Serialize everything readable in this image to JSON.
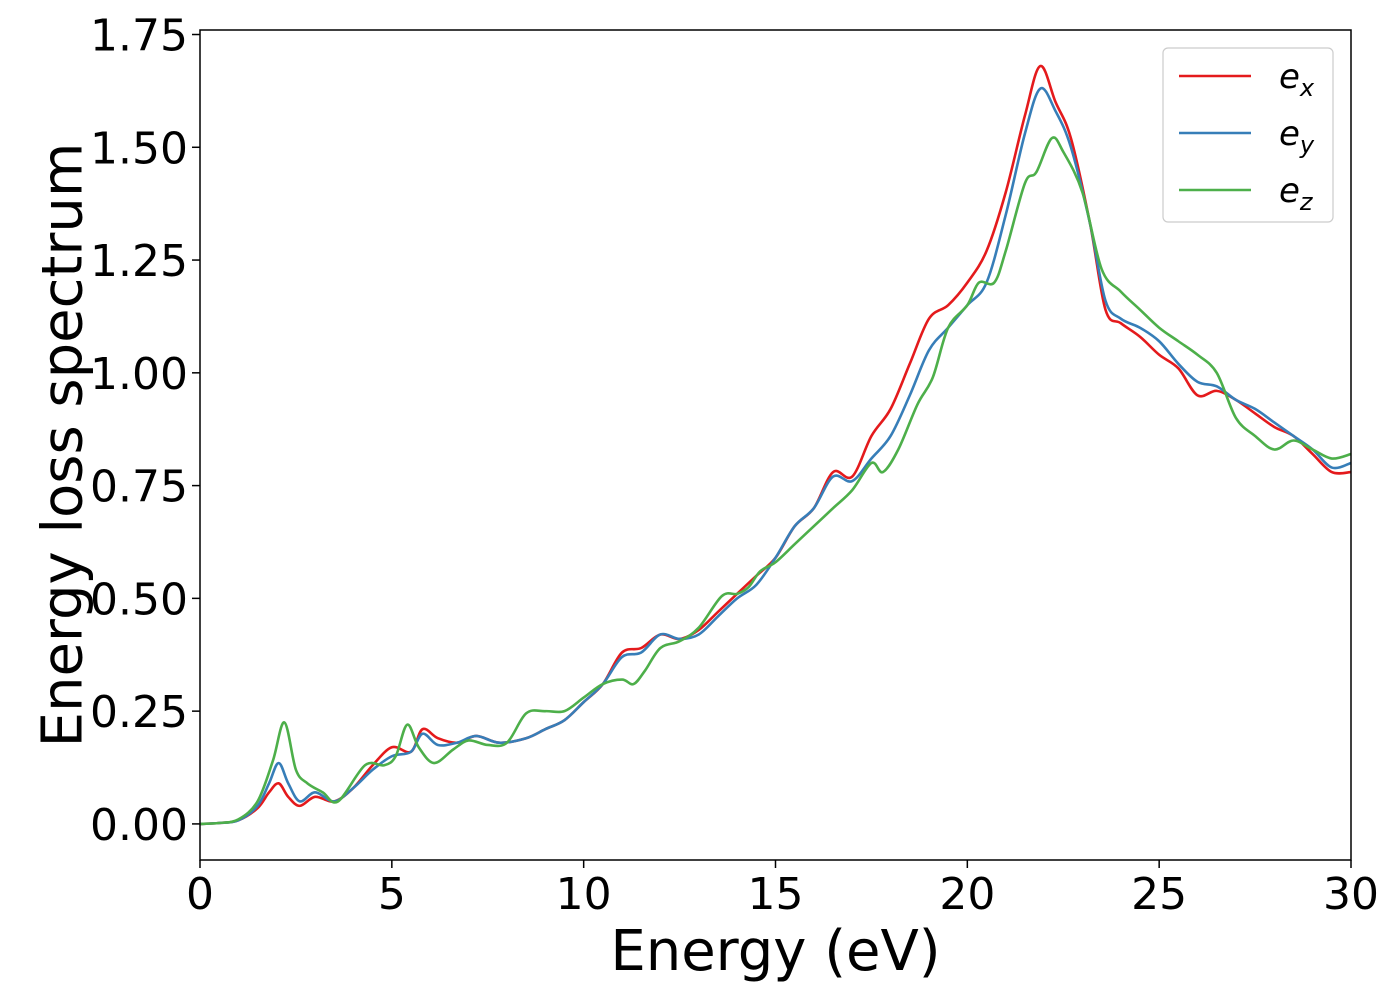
{
  "chart_data": {
    "type": "line",
    "title": "",
    "xlabel": "Energy (eV)",
    "ylabel": "Energy loss spectrum",
    "xlim": [
      0,
      30
    ],
    "ylim": [
      -0.08,
      1.76
    ],
    "xticks": [
      0,
      5,
      10,
      15,
      20,
      25,
      30
    ],
    "xtick_labels": [
      "0",
      "5",
      "10",
      "15",
      "20",
      "25",
      "30"
    ],
    "yticks": [
      0.0,
      0.25,
      0.5,
      0.75,
      1.0,
      1.25,
      1.5,
      1.75
    ],
    "ytick_labels": [
      "0.00",
      "0.25",
      "0.50",
      "0.75",
      "1.00",
      "1.25",
      "1.50",
      "1.75"
    ],
    "grid": false,
    "legend_position": "top-right",
    "series": [
      {
        "name": "e_x",
        "label_base": "e",
        "label_sub": "x",
        "color": "#e41a1c",
        "points": [
          [
            0,
            0
          ],
          [
            0.5,
            0.002
          ],
          [
            1.0,
            0.008
          ],
          [
            1.5,
            0.035
          ],
          [
            1.8,
            0.07
          ],
          [
            2.05,
            0.09
          ],
          [
            2.3,
            0.06
          ],
          [
            2.6,
            0.04
          ],
          [
            3.0,
            0.06
          ],
          [
            3.5,
            0.05
          ],
          [
            4.0,
            0.08
          ],
          [
            4.5,
            0.13
          ],
          [
            5.0,
            0.17
          ],
          [
            5.5,
            0.16
          ],
          [
            5.8,
            0.21
          ],
          [
            6.2,
            0.19
          ],
          [
            6.7,
            0.18
          ],
          [
            7.2,
            0.195
          ],
          [
            7.8,
            0.18
          ],
          [
            8.5,
            0.19
          ],
          [
            9.0,
            0.21
          ],
          [
            9.5,
            0.23
          ],
          [
            10.0,
            0.27
          ],
          [
            10.5,
            0.31
          ],
          [
            11.0,
            0.38
          ],
          [
            11.5,
            0.39
          ],
          [
            12.0,
            0.42
          ],
          [
            12.5,
            0.41
          ],
          [
            13.0,
            0.43
          ],
          [
            13.5,
            0.47
          ],
          [
            14.0,
            0.51
          ],
          [
            14.5,
            0.55
          ],
          [
            15.0,
            0.59
          ],
          [
            15.5,
            0.66
          ],
          [
            16.0,
            0.7
          ],
          [
            16.5,
            0.78
          ],
          [
            17.0,
            0.77
          ],
          [
            17.5,
            0.86
          ],
          [
            18.0,
            0.92
          ],
          [
            18.5,
            1.02
          ],
          [
            19.0,
            1.12
          ],
          [
            19.5,
            1.15
          ],
          [
            20.0,
            1.2
          ],
          [
            20.5,
            1.27
          ],
          [
            21.0,
            1.4
          ],
          [
            21.5,
            1.57
          ],
          [
            21.9,
            1.68
          ],
          [
            22.3,
            1.6
          ],
          [
            22.7,
            1.52
          ],
          [
            23.2,
            1.33
          ],
          [
            23.6,
            1.14
          ],
          [
            24.0,
            1.11
          ],
          [
            24.5,
            1.08
          ],
          [
            25.0,
            1.04
          ],
          [
            25.5,
            1.01
          ],
          [
            26.0,
            0.95
          ],
          [
            26.5,
            0.96
          ],
          [
            27.0,
            0.94
          ],
          [
            27.5,
            0.91
          ],
          [
            28.0,
            0.88
          ],
          [
            28.5,
            0.86
          ],
          [
            29.0,
            0.82
          ],
          [
            29.5,
            0.78
          ],
          [
            30.0,
            0.78
          ]
        ]
      },
      {
        "name": "e_y",
        "label_base": "e",
        "label_sub": "y",
        "color": "#377eb8",
        "points": [
          [
            0,
            0
          ],
          [
            0.5,
            0.002
          ],
          [
            1.0,
            0.008
          ],
          [
            1.5,
            0.04
          ],
          [
            1.8,
            0.09
          ],
          [
            2.05,
            0.135
          ],
          [
            2.3,
            0.09
          ],
          [
            2.6,
            0.05
          ],
          [
            3.0,
            0.07
          ],
          [
            3.5,
            0.05
          ],
          [
            4.0,
            0.08
          ],
          [
            4.5,
            0.12
          ],
          [
            5.0,
            0.15
          ],
          [
            5.5,
            0.16
          ],
          [
            5.8,
            0.2
          ],
          [
            6.2,
            0.175
          ],
          [
            6.7,
            0.18
          ],
          [
            7.2,
            0.195
          ],
          [
            7.8,
            0.18
          ],
          [
            8.5,
            0.19
          ],
          [
            9.0,
            0.21
          ],
          [
            9.5,
            0.23
          ],
          [
            10.0,
            0.27
          ],
          [
            10.5,
            0.31
          ],
          [
            11.0,
            0.37
          ],
          [
            11.5,
            0.38
          ],
          [
            12.0,
            0.42
          ],
          [
            12.5,
            0.41
          ],
          [
            13.0,
            0.42
          ],
          [
            13.5,
            0.46
          ],
          [
            14.0,
            0.5
          ],
          [
            14.5,
            0.53
          ],
          [
            15.0,
            0.59
          ],
          [
            15.5,
            0.66
          ],
          [
            16.0,
            0.7
          ],
          [
            16.5,
            0.77
          ],
          [
            17.0,
            0.76
          ],
          [
            17.5,
            0.81
          ],
          [
            18.0,
            0.86
          ],
          [
            18.5,
            0.95
          ],
          [
            19.0,
            1.05
          ],
          [
            19.5,
            1.1
          ],
          [
            20.0,
            1.15
          ],
          [
            20.5,
            1.2
          ],
          [
            21.0,
            1.35
          ],
          [
            21.5,
            1.53
          ],
          [
            21.9,
            1.63
          ],
          [
            22.3,
            1.58
          ],
          [
            22.7,
            1.5
          ],
          [
            23.2,
            1.33
          ],
          [
            23.6,
            1.16
          ],
          [
            24.0,
            1.12
          ],
          [
            24.5,
            1.1
          ],
          [
            25.0,
            1.07
          ],
          [
            25.5,
            1.02
          ],
          [
            26.0,
            0.98
          ],
          [
            26.5,
            0.97
          ],
          [
            27.0,
            0.94
          ],
          [
            27.5,
            0.92
          ],
          [
            28.0,
            0.89
          ],
          [
            28.5,
            0.86
          ],
          [
            29.0,
            0.83
          ],
          [
            29.5,
            0.79
          ],
          [
            30.0,
            0.8
          ]
        ]
      },
      {
        "name": "e_z",
        "label_base": "e",
        "label_sub": "z",
        "color": "#4daf4a",
        "points": [
          [
            0,
            0
          ],
          [
            0.5,
            0.002
          ],
          [
            1.0,
            0.01
          ],
          [
            1.5,
            0.05
          ],
          [
            1.9,
            0.14
          ],
          [
            2.2,
            0.225
          ],
          [
            2.5,
            0.12
          ],
          [
            2.8,
            0.09
          ],
          [
            3.2,
            0.07
          ],
          [
            3.6,
            0.05
          ],
          [
            4.3,
            0.13
          ],
          [
            4.8,
            0.13
          ],
          [
            5.1,
            0.15
          ],
          [
            5.4,
            0.22
          ],
          [
            5.7,
            0.17
          ],
          [
            6.1,
            0.135
          ],
          [
            6.6,
            0.165
          ],
          [
            7.0,
            0.185
          ],
          [
            7.5,
            0.175
          ],
          [
            8.0,
            0.18
          ],
          [
            8.5,
            0.245
          ],
          [
            9.0,
            0.25
          ],
          [
            9.5,
            0.25
          ],
          [
            10.0,
            0.28
          ],
          [
            10.5,
            0.31
          ],
          [
            11.0,
            0.32
          ],
          [
            11.3,
            0.31
          ],
          [
            11.6,
            0.34
          ],
          [
            12.0,
            0.39
          ],
          [
            12.5,
            0.405
          ],
          [
            13.0,
            0.435
          ],
          [
            13.6,
            0.505
          ],
          [
            14.0,
            0.51
          ],
          [
            14.3,
            0.525
          ],
          [
            14.6,
            0.56
          ],
          [
            15.0,
            0.58
          ],
          [
            15.5,
            0.62
          ],
          [
            16.0,
            0.66
          ],
          [
            16.5,
            0.7
          ],
          [
            17.0,
            0.74
          ],
          [
            17.5,
            0.8
          ],
          [
            17.8,
            0.78
          ],
          [
            18.2,
            0.83
          ],
          [
            18.7,
            0.93
          ],
          [
            19.1,
            0.99
          ],
          [
            19.5,
            1.1
          ],
          [
            20.0,
            1.15
          ],
          [
            20.3,
            1.2
          ],
          [
            20.7,
            1.2
          ],
          [
            21.0,
            1.27
          ],
          [
            21.5,
            1.42
          ],
          [
            21.8,
            1.445
          ],
          [
            22.2,
            1.52
          ],
          [
            22.5,
            1.49
          ],
          [
            23.0,
            1.4
          ],
          [
            23.5,
            1.23
          ],
          [
            24.0,
            1.18
          ],
          [
            24.5,
            1.14
          ],
          [
            25.0,
            1.1
          ],
          [
            25.5,
            1.07
          ],
          [
            26.0,
            1.04
          ],
          [
            26.5,
            1.0
          ],
          [
            27.0,
            0.9
          ],
          [
            27.5,
            0.86
          ],
          [
            28.0,
            0.83
          ],
          [
            28.5,
            0.85
          ],
          [
            29.0,
            0.83
          ],
          [
            29.5,
            0.81
          ],
          [
            30.0,
            0.82
          ]
        ]
      }
    ]
  }
}
